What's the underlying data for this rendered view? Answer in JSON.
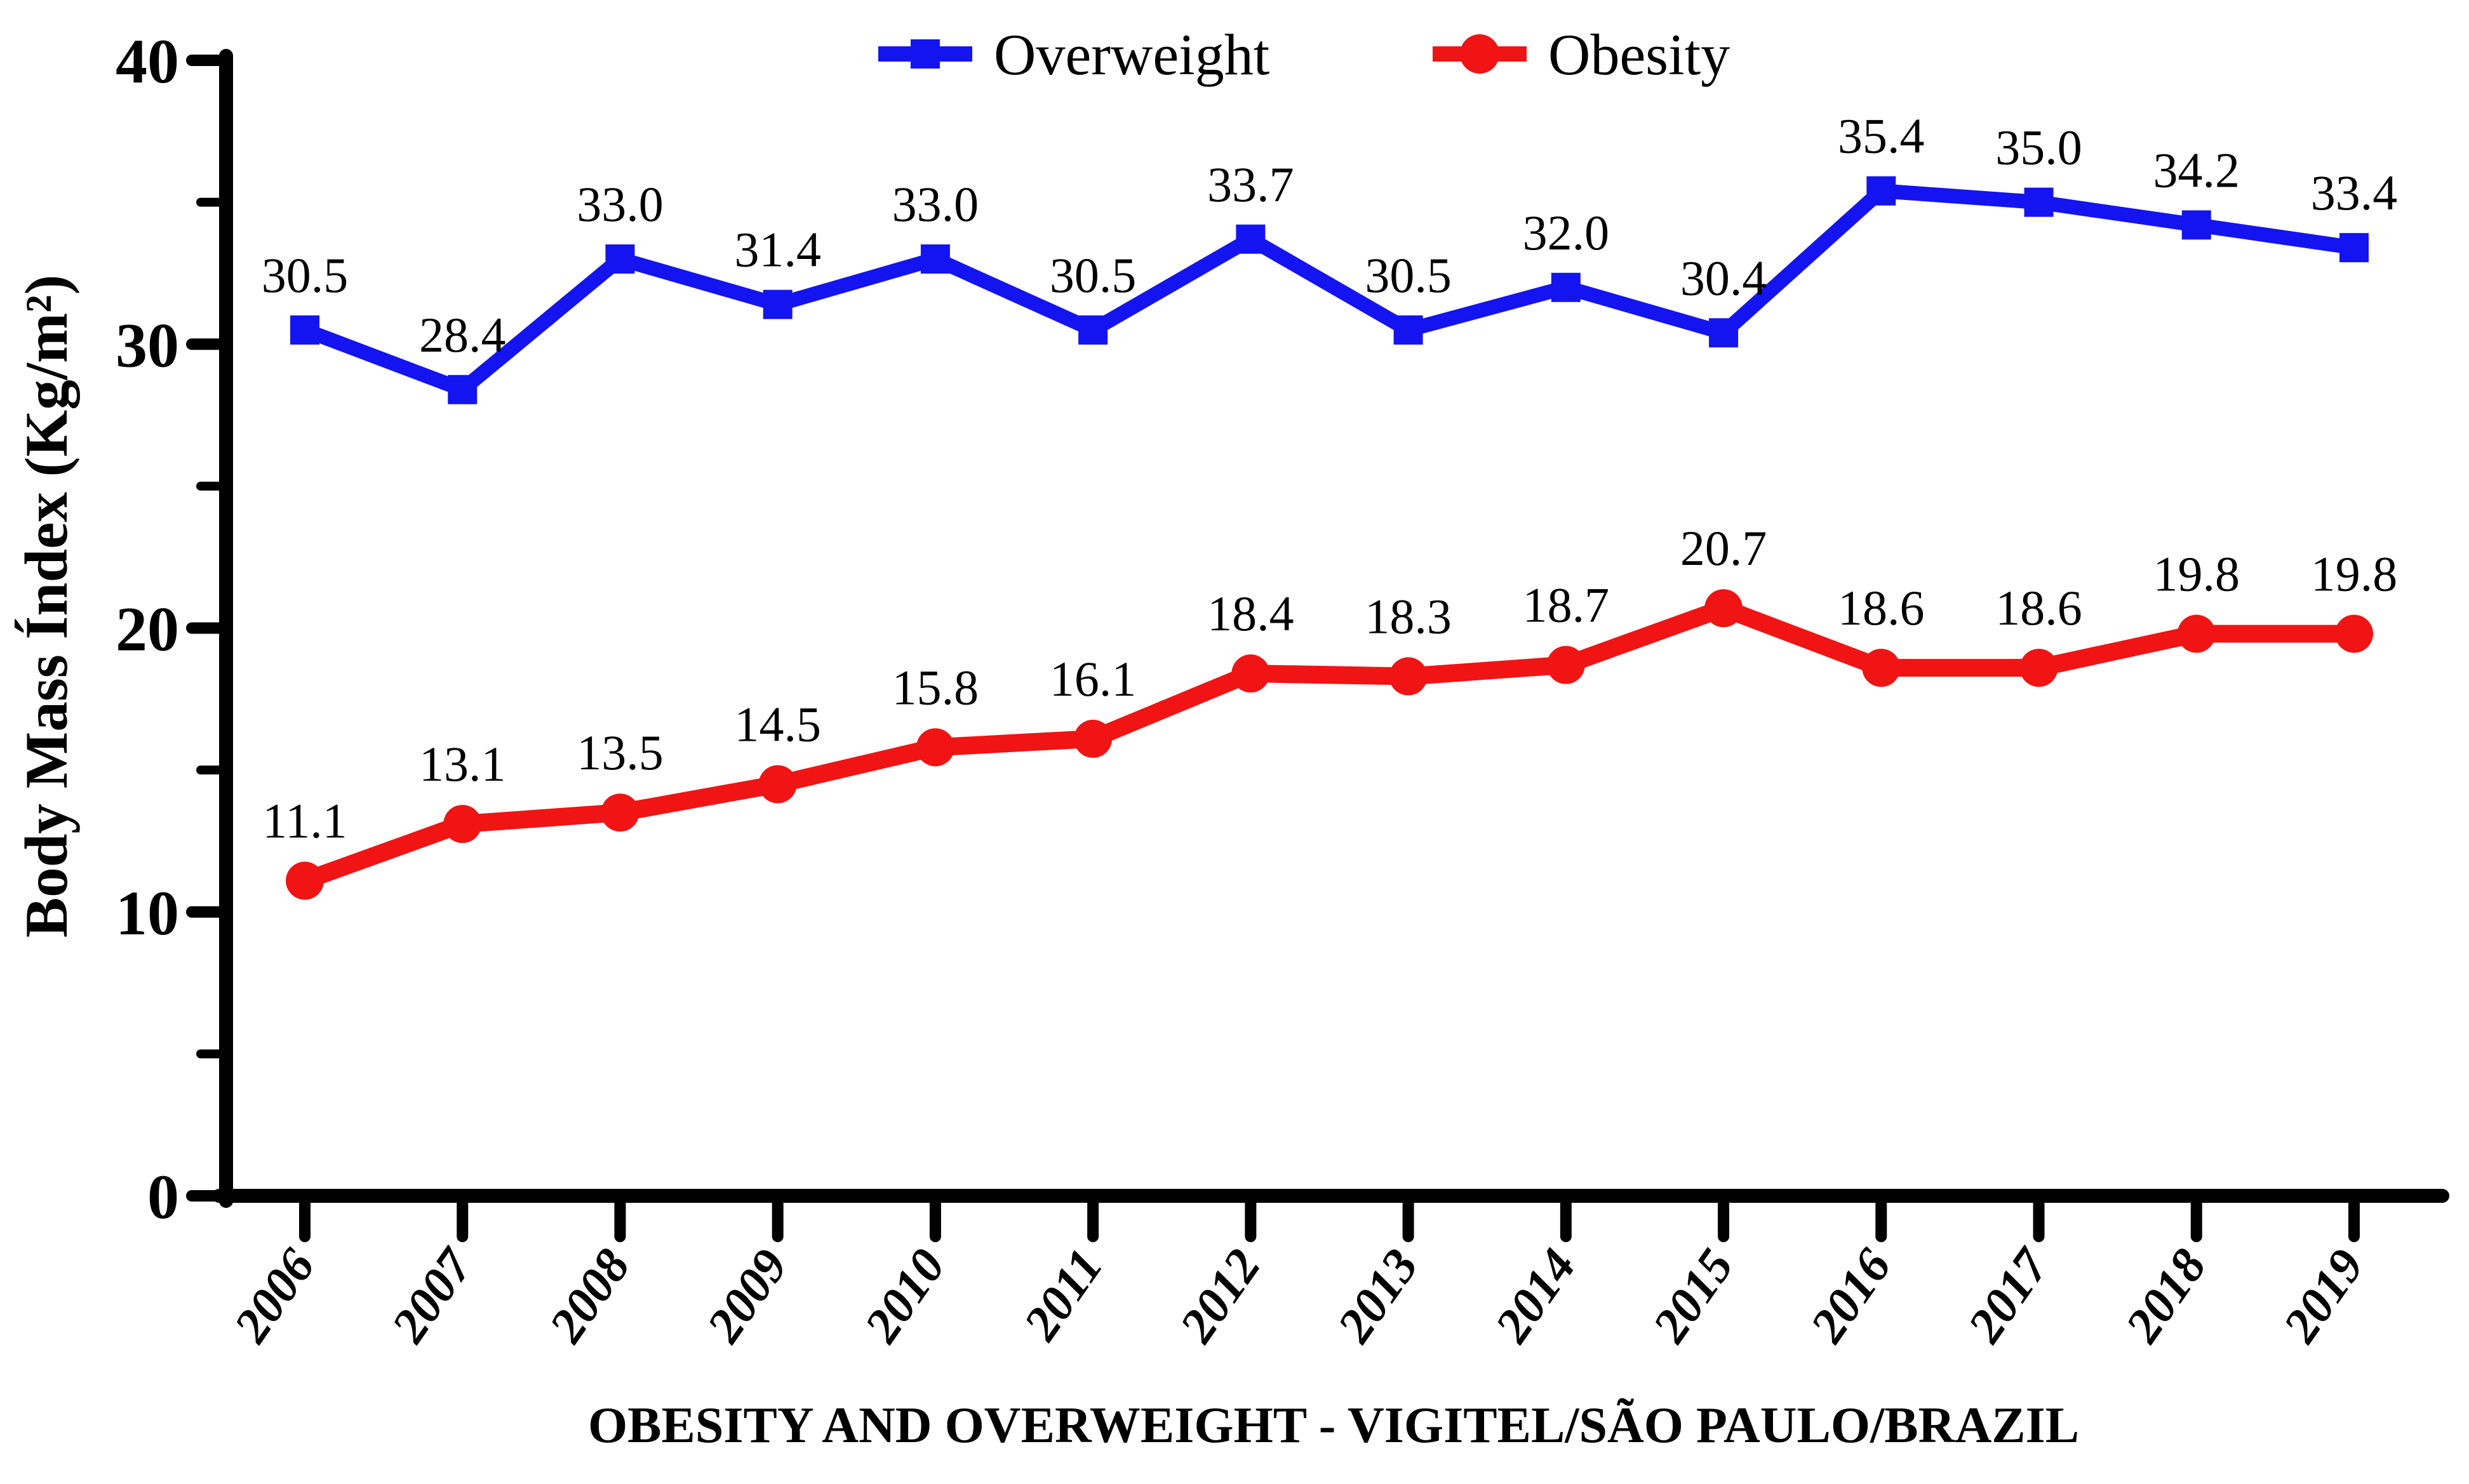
{
  "chart_data": {
    "type": "line",
    "title": "",
    "x_axis_title": "OBESITY AND OVERWEIGHT -  VIGITEL/SÃO PAULO/BRAZIL",
    "y_axis_title": "Body Mass Índex (Kg/m²)",
    "categories": [
      "2006",
      "2007",
      "2008",
      "2009",
      "2010",
      "2011",
      "2012",
      "2013",
      "2014",
      "2015",
      "2016",
      "2017",
      "2018",
      "2019"
    ],
    "series": [
      {
        "name": "Overweight",
        "color": "#1414f0",
        "marker": "square",
        "values": [
          30.5,
          28.4,
          33.0,
          31.4,
          33.0,
          30.5,
          33.7,
          30.5,
          32.0,
          30.4,
          35.4,
          35.0,
          34.2,
          33.4
        ],
        "labels": [
          "30.5",
          "28.4",
          "33.0",
          "31.4",
          "33.0",
          "30.5",
          "33.7",
          "30.5",
          "32.0",
          "30.4",
          "35.4",
          "35.0",
          "34.2",
          "33.4"
        ]
      },
      {
        "name": "Obesity",
        "color": "#f01414",
        "marker": "circle",
        "values": [
          11.1,
          13.1,
          13.5,
          14.5,
          15.8,
          16.1,
          18.4,
          18.3,
          18.7,
          20.7,
          18.6,
          18.6,
          19.8,
          19.8
        ],
        "labels": [
          "11.1",
          "13.1",
          "13.5",
          "14.5",
          "15.8",
          "16.1",
          "18.4",
          "18.3",
          "18.7",
          "20.7",
          "18.6",
          "18.6",
          "19.8",
          "19.8"
        ]
      }
    ],
    "y_axis": {
      "min": 0,
      "max": 40,
      "major_tick_step": 10,
      "minor_tick_step": 5,
      "tick_labels": [
        "0",
        "10",
        "20",
        "30",
        "40"
      ]
    },
    "legend": {
      "position": "top",
      "entries": [
        "Overweight",
        "Obesity"
      ]
    },
    "grid": false,
    "axis_color": "#000000",
    "text_color": "#000000",
    "background_color": "#ffffff"
  }
}
